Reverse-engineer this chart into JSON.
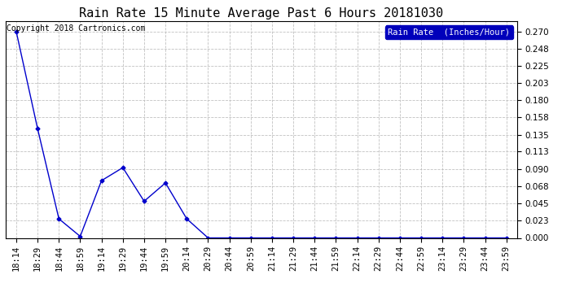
{
  "title": "Rain Rate 15 Minute Average Past 6 Hours 20181030",
  "copyright": "Copyright 2018 Cartronics.com",
  "legend_label": "Rain Rate  (Inches/Hour)",
  "line_color": "#0000CC",
  "marker_color": "#0000CC",
  "background_color": "#ffffff",
  "grid_color": "#bbbbbb",
  "ylim": [
    0.0,
    0.2835
  ],
  "yticks": [
    0.0,
    0.023,
    0.045,
    0.068,
    0.09,
    0.113,
    0.135,
    0.158,
    0.18,
    0.203,
    0.225,
    0.248,
    0.27
  ],
  "x_labels": [
    "18:14",
    "18:29",
    "18:44",
    "18:59",
    "19:14",
    "19:29",
    "19:44",
    "19:59",
    "20:14",
    "20:29",
    "20:44",
    "20:59",
    "21:14",
    "21:29",
    "21:44",
    "21:59",
    "22:14",
    "22:29",
    "22:44",
    "22:59",
    "23:14",
    "23:29",
    "23:44",
    "23:59"
  ],
  "y_values": [
    0.27,
    0.143,
    0.025,
    0.002,
    0.075,
    0.092,
    0.048,
    0.072,
    0.025,
    0.0,
    0.0,
    0.0,
    0.0,
    0.0,
    0.0,
    0.0,
    0.0,
    0.0,
    0.0,
    0.0,
    0.0,
    0.0,
    0.0,
    0.0
  ],
  "title_fontsize": 11,
  "tick_fontsize": 7.5,
  "legend_fontsize": 7.5,
  "copyright_fontsize": 7
}
